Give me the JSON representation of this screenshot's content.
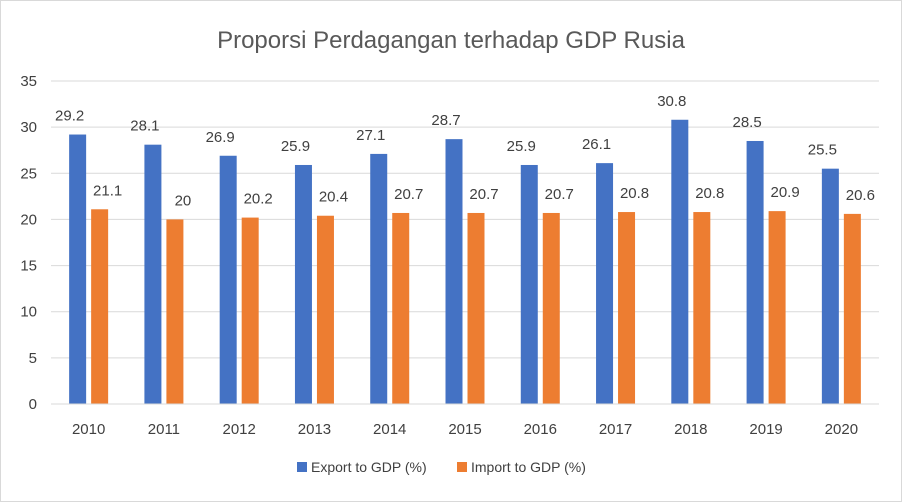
{
  "chart_data": {
    "type": "bar",
    "title": "Proporsi Perdagangan terhadap GDP Rusia",
    "categories": [
      "2010",
      "2011",
      "2012",
      "2013",
      "2014",
      "2015",
      "2016",
      "2017",
      "2018",
      "2019",
      "2020"
    ],
    "series": [
      {
        "name": "Export to GDP (%)",
        "color": "#4472C4",
        "values": [
          29.2,
          28.1,
          26.9,
          25.9,
          27.1,
          28.7,
          25.9,
          26.1,
          30.8,
          28.5,
          25.5
        ]
      },
      {
        "name": "Import to GDP (%)",
        "color": "#ED7D31",
        "values": [
          21.1,
          20,
          20.2,
          20.4,
          20.7,
          20.7,
          20.7,
          20.8,
          20.8,
          20.9,
          20.6
        ]
      }
    ],
    "ylim": [
      0,
      35
    ],
    "yticks": [
      0,
      5,
      10,
      15,
      20,
      25,
      30,
      35
    ],
    "grid": true,
    "legend_position": "bottom",
    "data_labels": true
  }
}
